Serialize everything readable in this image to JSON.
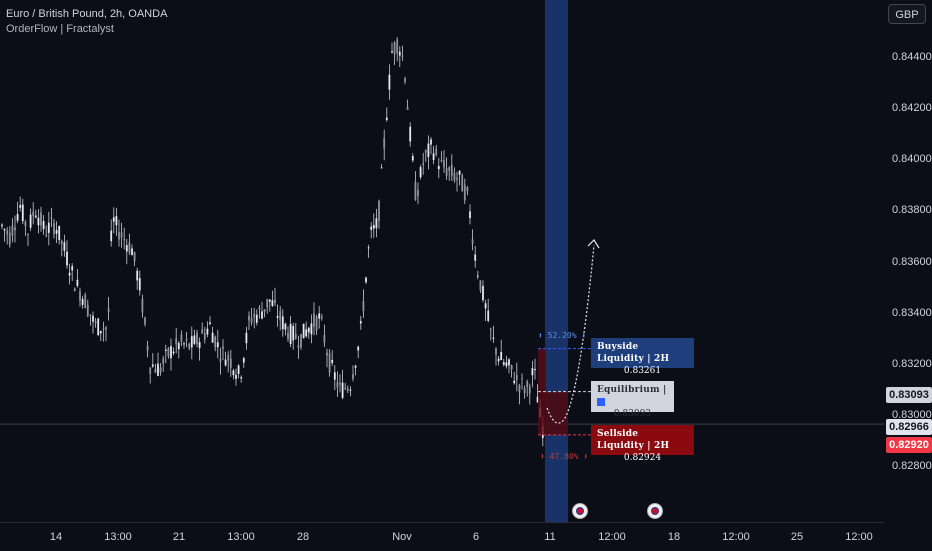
{
  "header": {
    "title": "Euro / British Pound, 2h, OANDA",
    "indicator": "OrderFlow | Fractalyst"
  },
  "currency_button": "GBP",
  "price_axis": {
    "ticks": [
      "0.84400",
      "0.84200",
      "0.84000",
      "0.83800",
      "0.83600",
      "0.83400",
      "0.83200",
      "0.83000",
      "0.82800"
    ],
    "tick_values": [
      0.844,
      0.842,
      0.84,
      0.838,
      0.836,
      0.834,
      0.832,
      0.83,
      0.828
    ],
    "tags": [
      {
        "label": "0.83093",
        "value": 0.83093,
        "bg": "#d1d4dc",
        "fg": "#131722"
      },
      {
        "label": "0.82966",
        "value": 0.82966,
        "bg": "#e0e3eb",
        "fg": "#131722"
      },
      {
        "label": "0.82920",
        "value": 0.8292,
        "bg": "#f23645",
        "fg": "#ffffff"
      }
    ]
  },
  "time_axis": {
    "labels": [
      "14",
      "13:00",
      "21",
      "13:00",
      "28",
      "Nov",
      "6",
      "11",
      "12:00",
      "18",
      "12:00",
      "25",
      "12:00"
    ]
  },
  "zones": {
    "buyside": {
      "title": "Buyside Liquidity",
      "timeframe": "2H",
      "value": "0.83261",
      "percent": "52.20%",
      "color": "#1e3f7c"
    },
    "equilibrium": {
      "title": "Equilibrium",
      "value": "0.83093",
      "color": "#d1d4dc"
    },
    "sellside": {
      "title": "Sellside Liquidity",
      "timeframe": "2H",
      "value": "0.82924",
      "percent": "47.80%",
      "color": "#8a0a10"
    }
  },
  "colors": {
    "background": "#0b0e16",
    "candle": "#d1d4dc",
    "accent_blue": "#2962ff",
    "accent_red": "#f23645"
  },
  "event_icons": [
    "uk-flag-icon",
    "uk-flag-icon"
  ]
}
